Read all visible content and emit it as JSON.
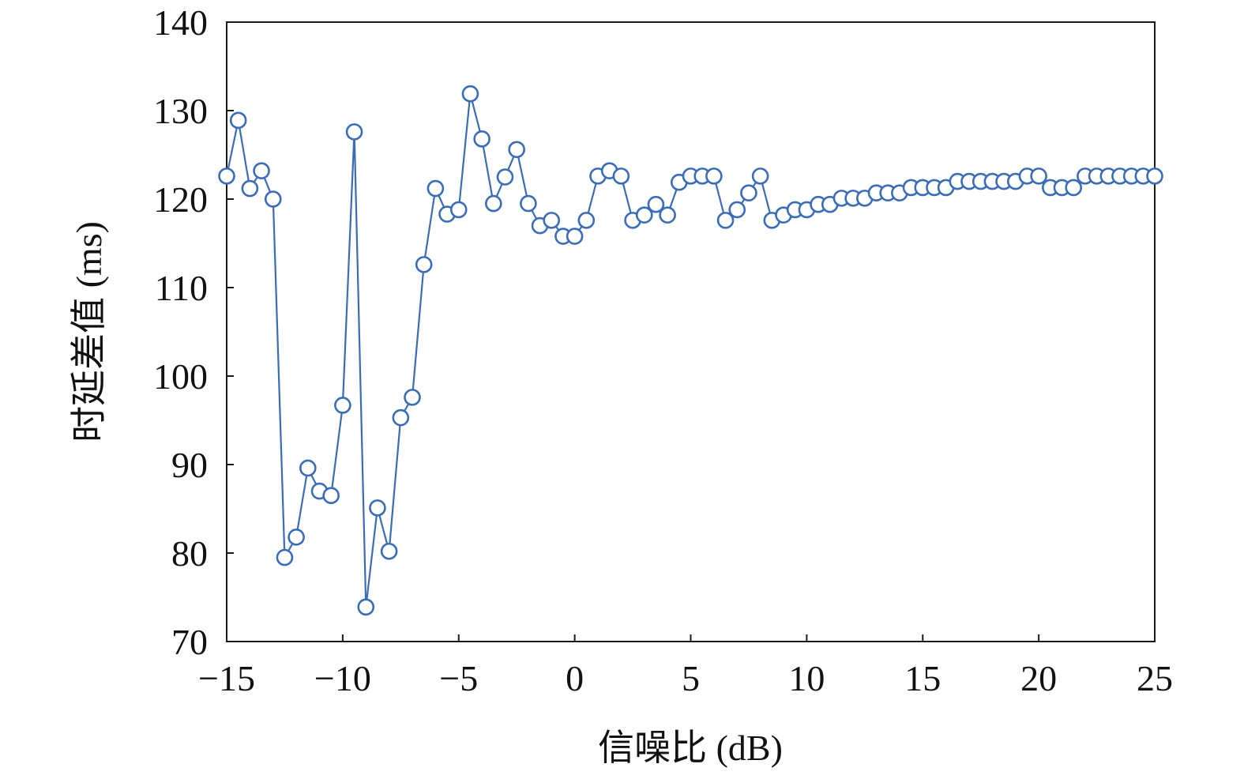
{
  "chart_data": {
    "type": "line",
    "xlabel": "信噪比 (dB)",
    "ylabel": "时延差值 (ms)",
    "xlim": [
      -15,
      25
    ],
    "ylim": [
      70,
      140
    ],
    "x_ticks": [
      "−15",
      "−10",
      "−5",
      "0",
      "5",
      "10",
      "15",
      "20",
      "25"
    ],
    "y_ticks": [
      "70",
      "80",
      "90",
      "100",
      "110",
      "120",
      "130",
      "140"
    ],
    "grid": false,
    "legend": "none",
    "line_color": "#3a6db5",
    "marker": "open-circle",
    "series": [
      {
        "x": [
          -15,
          -14.5,
          -14,
          -13.5,
          -13,
          -12.5,
          -12,
          -11.5,
          -11,
          -10.5,
          -10,
          -9.5,
          -9,
          -8.5,
          -8,
          -7.5,
          -7,
          -6.5,
          -6,
          -5.5,
          -5,
          -4.5,
          -4,
          -3.5,
          -3,
          -2.5,
          -2,
          -1.5,
          -1,
          -0.5,
          0,
          0.5,
          1,
          1.5,
          2,
          2.5,
          3,
          3.5,
          4,
          4.5,
          5,
          5.5,
          6,
          6.5,
          7,
          7.5,
          8,
          8.5,
          9,
          9.5,
          10,
          10.5,
          11,
          11.5,
          12,
          12.5,
          13,
          13.5,
          14,
          14.5,
          15,
          15.5,
          16,
          16.5,
          17,
          17.5,
          18,
          18.5,
          19,
          19.5,
          20,
          20.5,
          21,
          21.5,
          22,
          22.5,
          23,
          23.5,
          24,
          24.5,
          25
        ],
        "values": [
          122.6,
          128.9,
          121.2,
          123.2,
          120.0,
          79.5,
          81.8,
          89.6,
          87.0,
          86.5,
          96.7,
          127.6,
          73.9,
          85.1,
          80.2,
          95.3,
          97.6,
          112.6,
          121.2,
          118.3,
          118.8,
          131.9,
          126.8,
          119.5,
          122.5,
          125.6,
          119.5,
          117.0,
          117.6,
          115.8,
          115.8,
          117.6,
          122.6,
          123.2,
          122.6,
          117.6,
          118.2,
          119.4,
          118.2,
          121.9,
          122.6,
          122.6,
          122.6,
          117.6,
          118.8,
          120.7,
          122.6,
          117.6,
          118.2,
          118.8,
          118.8,
          119.4,
          119.4,
          120.1,
          120.1,
          120.1,
          120.7,
          120.7,
          120.7,
          121.3,
          121.3,
          121.3,
          121.3,
          122.0,
          122.0,
          122.0,
          122.0,
          122.0,
          122.0,
          122.6,
          122.6,
          121.3,
          121.3,
          121.3,
          122.6,
          122.6,
          122.6,
          122.6,
          122.6,
          122.6,
          122.6
        ]
      }
    ]
  }
}
